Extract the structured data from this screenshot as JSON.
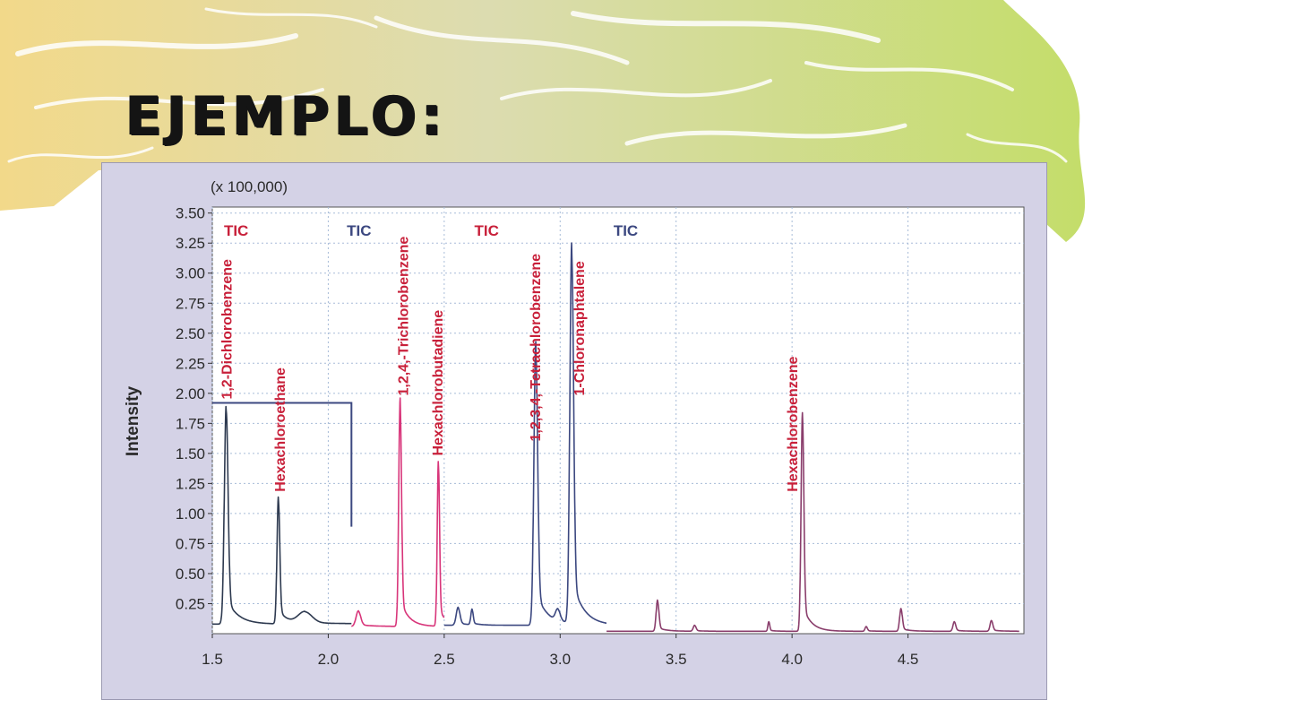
{
  "slide": {
    "title": "EJEMPLO:"
  },
  "colors": {
    "dark": "#2e3a50",
    "pink": "#d8357a",
    "navy": "#3c4880",
    "mauve": "#8a3e6c",
    "label_red": "#c8203a"
  },
  "chart_data": {
    "type": "line",
    "title": "",
    "xlabel": "",
    "ylabel": "Intensity",
    "scale_note": "(x 100,000)",
    "xlim": [
      1.5,
      5.0
    ],
    "ylim": [
      0,
      3.55
    ],
    "grid": true,
    "x_ticks": [
      "1.5",
      "2.0",
      "2.5",
      "3.0",
      "3.5",
      "4.0",
      "4.5"
    ],
    "x_tick_values": [
      1.5,
      2.0,
      2.5,
      3.0,
      3.5,
      4.0,
      4.5
    ],
    "y_ticks": [
      "0.25",
      "0.50",
      "0.75",
      "1.00",
      "1.25",
      "1.50",
      "1.75",
      "2.00",
      "2.25",
      "2.50",
      "2.75",
      "3.00",
      "3.25",
      "3.50"
    ],
    "y_tick_values": [
      0.25,
      0.5,
      0.75,
      1.0,
      1.25,
      1.5,
      1.75,
      2.0,
      2.25,
      2.5,
      2.75,
      3.0,
      3.25,
      3.5
    ],
    "series": [
      {
        "color": "dark",
        "x_range": [
          1.5,
          2.1
        ],
        "baseline": 0.08,
        "peaks": [
          [
            1.56,
            1.83,
            0.008
          ],
          [
            1.785,
            1.06,
            0.006
          ],
          [
            1.9,
            0.1,
            0.03
          ]
        ]
      },
      {
        "color": "pink",
        "x_range": [
          2.1,
          2.5
        ],
        "baseline": 0.06,
        "peaks": [
          [
            2.13,
            0.13,
            0.01
          ],
          [
            2.31,
            1.9,
            0.006
          ],
          [
            2.475,
            1.38,
            0.005
          ]
        ]
      },
      {
        "color": "navy",
        "x_range": [
          2.5,
          3.2
        ],
        "baseline": 0.07,
        "peaks": [
          [
            2.56,
            0.15,
            0.008
          ],
          [
            2.62,
            0.13,
            0.005
          ],
          [
            2.895,
            2.36,
            0.008
          ],
          [
            2.99,
            0.1,
            0.01
          ],
          [
            3.05,
            3.17,
            0.008
          ]
        ]
      },
      {
        "color": "mauve",
        "x_range": [
          3.2,
          4.98
        ],
        "baseline": 0.02,
        "peaks": [
          [
            3.42,
            0.26,
            0.006
          ],
          [
            3.58,
            0.05,
            0.006
          ],
          [
            3.9,
            0.08,
            0.004
          ],
          [
            4.045,
            1.82,
            0.006
          ],
          [
            4.32,
            0.04,
            0.005
          ],
          [
            4.47,
            0.19,
            0.006
          ],
          [
            4.7,
            0.08,
            0.006
          ],
          [
            4.86,
            0.09,
            0.006
          ]
        ]
      }
    ],
    "peak_labels": [
      {
        "text": "1,2-Dichlorobenzene",
        "x": 1.56,
        "y_bottom": 1.95
      },
      {
        "text": "Hexachloroethane",
        "x": 1.79,
        "y_bottom": 1.18
      },
      {
        "text": "1,2,4,-Trichlorobenzene",
        "x": 2.32,
        "y_bottom": 1.98
      },
      {
        "text": "Hexachlorobutadiene",
        "x": 2.47,
        "y_bottom": 1.48
      },
      {
        "text": "1,2,3,4,-Tetrachlorobenzene",
        "x": 2.89,
        "y_bottom": 1.6
      },
      {
        "text": "1-Chloronaphtalene",
        "x": 3.08,
        "y_bottom": 1.98
      },
      {
        "text": "Hexachlorobenzene",
        "x": 4.0,
        "y_bottom": 1.18
      }
    ],
    "tic_labels": [
      {
        "text": "TIC",
        "x": 1.55,
        "color": "label_red"
      },
      {
        "text": "TIC",
        "x": 2.08,
        "color": "navy"
      },
      {
        "text": "TIC",
        "x": 2.63,
        "color": "label_red"
      },
      {
        "text": "TIC",
        "x": 3.23,
        "color": "navy"
      }
    ],
    "inset_bracket": {
      "x_end": 2.1,
      "y_top": 1.92,
      "y_bottom": 0.89
    }
  }
}
